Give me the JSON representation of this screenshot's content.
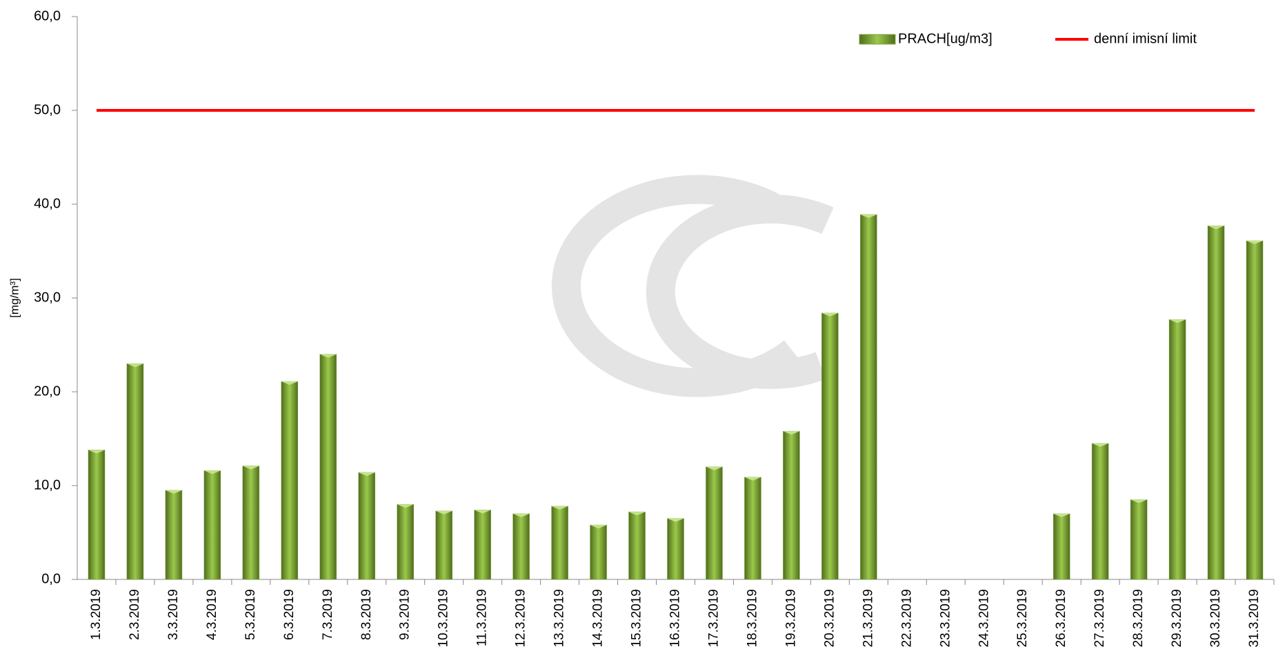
{
  "chart_data": {
    "type": "bar",
    "y_label": "[mg/m³]",
    "categories": [
      "1.3.2019",
      "2.3.2019",
      "3.3.2019",
      "4.3.2019",
      "5.3.2019",
      "6.3.2019",
      "7.3.2019",
      "8.3.2019",
      "9.3.2019",
      "10.3.2019",
      "11.3.2019",
      "12.3.2019",
      "13.3.2019",
      "14.3.2019",
      "15.3.2019",
      "16.3.2019",
      "17.3.2019",
      "18.3.2019",
      "19.3.2019",
      "20.3.2019",
      "21.3.2019",
      "22.3.2019",
      "23.3.2019",
      "24.3.2019",
      "25.3.2019",
      "26.3.2019",
      "27.3.2019",
      "28.3.2019",
      "29.3.2019",
      "30.3.2019",
      "31.3.2019"
    ],
    "series": [
      {
        "name": "PRACH[ug/m3]",
        "type": "bar",
        "color": "#7fa33a",
        "values": [
          13.8,
          23.0,
          9.5,
          11.6,
          12.1,
          21.1,
          24.0,
          11.4,
          8.0,
          7.3,
          7.4,
          7.0,
          7.8,
          5.8,
          7.2,
          6.5,
          12.0,
          10.9,
          15.8,
          28.4,
          38.9,
          null,
          null,
          null,
          null,
          7.0,
          14.5,
          8.5,
          27.7,
          37.7,
          36.1
        ]
      },
      {
        "name": "denní imisní limit",
        "type": "line",
        "color": "#ff0000",
        "values": [
          50,
          50,
          50,
          50,
          50,
          50,
          50,
          50,
          50,
          50,
          50,
          50,
          50,
          50,
          50,
          50,
          50,
          50,
          50,
          50,
          50,
          50,
          50,
          50,
          50,
          50,
          50,
          50,
          50,
          50,
          50
        ]
      }
    ],
    "ylim": [
      0,
      60
    ],
    "yticks": [
      {
        "value": 0,
        "label": "0,0"
      },
      {
        "value": 10,
        "label": "10,0"
      },
      {
        "value": 20,
        "label": "20,0"
      },
      {
        "value": 30,
        "label": "30,0"
      },
      {
        "value": 40,
        "label": "40,0"
      },
      {
        "value": 50,
        "label": "50,0"
      },
      {
        "value": 60,
        "label": "60,0"
      }
    ],
    "legend": "top-right"
  }
}
